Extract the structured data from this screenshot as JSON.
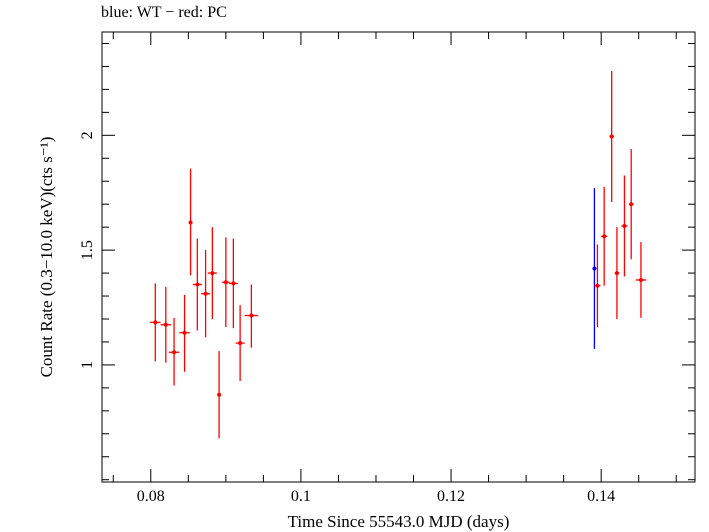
{
  "chart_data": {
    "type": "scatter",
    "title": "blue: WT − red: PC",
    "xlabel": "Time Since 55543.0 MJD (days)",
    "ylabel": "Count Rate (0.3−10.0 keV)(cts s⁻¹)",
    "xlim": [
      0.0735,
      0.1525
    ],
    "ylim": [
      0.49,
      2.45
    ],
    "xticks": [
      0.08,
      0.1,
      0.12,
      0.14
    ],
    "xtick_labels": [
      "0.08",
      "0.1",
      "0.12",
      "0.14"
    ],
    "yticks": [
      1,
      1.5,
      2
    ],
    "ytick_labels": [
      "1",
      "1.5",
      "2"
    ],
    "grid": false,
    "series": [
      {
        "name": "WT",
        "color": "#0000ff",
        "points": [
          {
            "x": 0.1391,
            "y": 1.42,
            "xerr": 0.0001,
            "ylo": 1.07,
            "yhi": 1.77
          }
        ]
      },
      {
        "name": "PC",
        "color": "#ff0000",
        "points": [
          {
            "x": 0.0806,
            "y": 1.185,
            "xerr": 0.0007,
            "ylo": 1.015,
            "yhi": 1.355
          },
          {
            "x": 0.082,
            "y": 1.175,
            "xerr": 0.0007,
            "ylo": 1.01,
            "yhi": 1.34
          },
          {
            "x": 0.0831,
            "y": 1.055,
            "xerr": 0.0007,
            "ylo": 0.91,
            "yhi": 1.205
          },
          {
            "x": 0.0845,
            "y": 1.14,
            "xerr": 0.0007,
            "ylo": 0.97,
            "yhi": 1.305
          },
          {
            "x": 0.0853,
            "y": 1.62,
            "xerr": 0.0002,
            "ylo": 1.39,
            "yhi": 1.855
          },
          {
            "x": 0.0862,
            "y": 1.35,
            "xerr": 0.0006,
            "ylo": 1.15,
            "yhi": 1.55
          },
          {
            "x": 0.0873,
            "y": 1.31,
            "xerr": 0.0006,
            "ylo": 1.12,
            "yhi": 1.5
          },
          {
            "x": 0.0882,
            "y": 1.4,
            "xerr": 0.0006,
            "ylo": 1.2,
            "yhi": 1.6
          },
          {
            "x": 0.0891,
            "y": 0.87,
            "xerr": 0.0002,
            "ylo": 0.68,
            "yhi": 1.06
          },
          {
            "x": 0.09,
            "y": 1.36,
            "xerr": 0.0005,
            "ylo": 1.165,
            "yhi": 1.555
          },
          {
            "x": 0.091,
            "y": 1.355,
            "xerr": 0.0006,
            "ylo": 1.16,
            "yhi": 1.55
          },
          {
            "x": 0.0919,
            "y": 1.095,
            "xerr": 0.0006,
            "ylo": 0.93,
            "yhi": 1.26
          },
          {
            "x": 0.0934,
            "y": 1.215,
            "xerr": 0.0009,
            "ylo": 1.075,
            "yhi": 1.35
          },
          {
            "x": 0.1395,
            "y": 1.345,
            "xerr": 0.0004,
            "ylo": 1.165,
            "yhi": 1.525
          },
          {
            "x": 0.1404,
            "y": 1.56,
            "xerr": 0.0004,
            "ylo": 1.345,
            "yhi": 1.775
          },
          {
            "x": 0.1414,
            "y": 1.995,
            "xerr": 0.0003,
            "ylo": 1.71,
            "yhi": 2.28
          },
          {
            "x": 0.1421,
            "y": 1.4,
            "xerr": 0.0003,
            "ylo": 1.2,
            "yhi": 1.6
          },
          {
            "x": 0.1431,
            "y": 1.605,
            "xerr": 0.0004,
            "ylo": 1.385,
            "yhi": 1.825
          },
          {
            "x": 0.144,
            "y": 1.7,
            "xerr": 0.0003,
            "ylo": 1.46,
            "yhi": 1.94
          },
          {
            "x": 0.1453,
            "y": 1.37,
            "xerr": 0.0007,
            "ylo": 1.205,
            "yhi": 1.535
          }
        ]
      }
    ]
  }
}
